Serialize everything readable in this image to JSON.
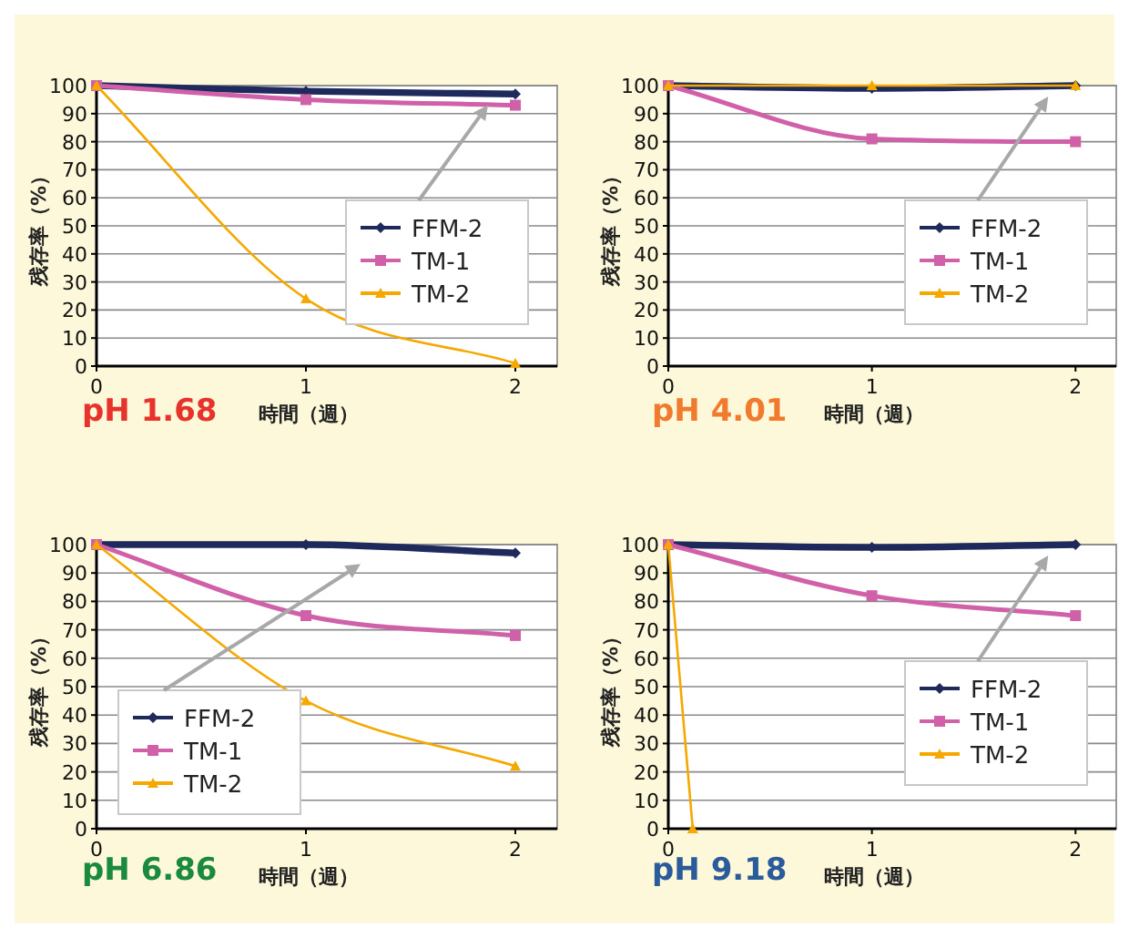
{
  "chart_data": [
    {
      "type": "line",
      "title": "pH 1.68",
      "xlabel": "時間（週）",
      "ylabel": "残存率（%）",
      "x": [
        0,
        1,
        2
      ],
      "xlim": [
        0,
        2.2
      ],
      "xticks": [
        0,
        1,
        2
      ],
      "ylim": [
        0,
        100
      ],
      "yticks": [
        0,
        10,
        20,
        30,
        40,
        50,
        60,
        70,
        80,
        90,
        100
      ],
      "grid": "y",
      "legend": "right",
      "series": [
        {
          "name": "FFM-2",
          "color": "#1f2a5c",
          "marker": "diamond",
          "values": [
            100,
            98,
            97
          ]
        },
        {
          "name": "TM-1",
          "color": "#d060a8",
          "marker": "square",
          "values": [
            100,
            95,
            93
          ]
        },
        {
          "name": "TM-2",
          "color": "#f5a800",
          "marker": "triangle",
          "values": [
            100,
            24,
            1
          ]
        }
      ]
    },
    {
      "type": "line",
      "title": "pH 4.01",
      "xlabel": "時間（週）",
      "ylabel": "残存率（%）",
      "x": [
        0,
        1,
        2
      ],
      "xlim": [
        0,
        2.2
      ],
      "xticks": [
        0,
        1,
        2
      ],
      "ylim": [
        0,
        100
      ],
      "yticks": [
        0,
        10,
        20,
        30,
        40,
        50,
        60,
        70,
        80,
        90,
        100
      ],
      "grid": "y",
      "legend": "right",
      "series": [
        {
          "name": "FFM-2",
          "color": "#1f2a5c",
          "marker": "diamond",
          "values": [
            100,
            99,
            100
          ]
        },
        {
          "name": "TM-1",
          "color": "#d060a8",
          "marker": "square",
          "values": [
            100,
            81,
            80
          ]
        },
        {
          "name": "TM-2",
          "color": "#f5a800",
          "marker": "triangle",
          "values": [
            100,
            100,
            100
          ]
        }
      ]
    },
    {
      "type": "line",
      "title": "pH 6.86",
      "xlabel": "時間（週）",
      "ylabel": "残存率（%）",
      "x": [
        0,
        1,
        2
      ],
      "xlim": [
        0,
        2.2
      ],
      "xticks": [
        0,
        1,
        2
      ],
      "ylim": [
        0,
        100
      ],
      "yticks": [
        0,
        10,
        20,
        30,
        40,
        50,
        60,
        70,
        80,
        90,
        100
      ],
      "grid": "y",
      "legend": "bottom left",
      "series": [
        {
          "name": "FFM-2",
          "color": "#1f2a5c",
          "marker": "diamond",
          "values": [
            100,
            100,
            97
          ]
        },
        {
          "name": "TM-1",
          "color": "#d060a8",
          "marker": "square",
          "values": [
            100,
            75,
            68
          ]
        },
        {
          "name": "TM-2",
          "color": "#f5a800",
          "marker": "triangle",
          "values": [
            100,
            45,
            22
          ]
        }
      ]
    },
    {
      "type": "line",
      "title": "pH 9.18",
      "xlabel": "時間（週）",
      "ylabel": "残存率（%）",
      "x": [
        0,
        1,
        2
      ],
      "xlim": [
        0,
        2.2
      ],
      "xticks": [
        0,
        1,
        2
      ],
      "ylim": [
        0,
        100
      ],
      "yticks": [
        0,
        10,
        20,
        30,
        40,
        50,
        60,
        70,
        80,
        90,
        100
      ],
      "grid": "y",
      "legend": "right",
      "series": [
        {
          "name": "FFM-2",
          "color": "#1f2a5c",
          "marker": "diamond",
          "values": [
            100,
            99,
            100
          ]
        },
        {
          "name": "TM-1",
          "color": "#d060a8",
          "marker": "square",
          "values": [
            100,
            82,
            75
          ]
        },
        {
          "name": "TM-2",
          "color": "#f5a800",
          "marker": "triangle",
          "x": [
            0,
            0.12
          ],
          "values": [
            100,
            0
          ]
        }
      ]
    }
  ]
}
